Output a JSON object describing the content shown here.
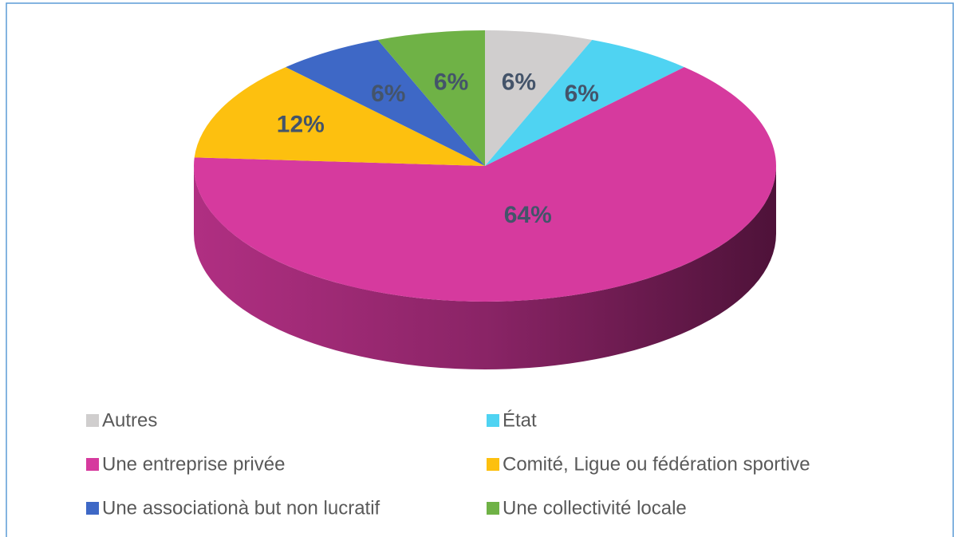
{
  "chart_data": {
    "type": "pie",
    "categories": [
      "Autres",
      "État",
      "Une entreprise privée",
      "Comité, Ligue ou fédération sportive",
      "Une associationà but non lucratif",
      "Une collectivité locale"
    ],
    "values": [
      6,
      6,
      64,
      12,
      6,
      6
    ],
    "value_labels": [
      "6%",
      "6%",
      "64%",
      "12%",
      "6%",
      "6%"
    ],
    "colors": [
      "#d0cece",
      "#4fd3f2",
      "#d63a9e",
      "#fdc00f",
      "#3e68c6",
      "#6fb246"
    ],
    "legend": "bottom"
  }
}
